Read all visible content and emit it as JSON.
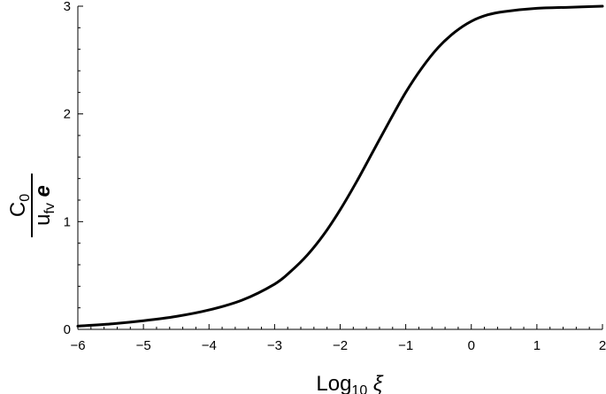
{
  "chart_data": {
    "type": "line",
    "title": "",
    "x_axis": {
      "label_main": "Log",
      "label_sub": "10",
      "label_symbol": "ξ",
      "ticks": [
        -6,
        -5,
        -4,
        -3,
        -2,
        -1,
        0,
        1,
        2
      ],
      "tick_labels": [
        "−6",
        "−5",
        "−4",
        "−3",
        "−2",
        "−1",
        "0",
        "1",
        "2"
      ],
      "range": [
        -6,
        2
      ]
    },
    "y_axis": {
      "numerator_main": "C",
      "numerator_sub": "0",
      "denominator_main": "u",
      "denominator_sub": "fv",
      "denominator_symbol": "e",
      "ticks": [
        0,
        1,
        2,
        3
      ],
      "tick_labels": [
        "0",
        "1",
        "2",
        "3"
      ],
      "range": [
        0,
        3
      ]
    },
    "grid": false,
    "legend": "none",
    "series": [
      {
        "color": "#000000",
        "x": [
          -6,
          -5.5,
          -5,
          -4.5,
          -4,
          -3.5,
          -3,
          -2.75,
          -2.5,
          -2.25,
          -2,
          -1.75,
          -1.5,
          -1.25,
          -1,
          -0.75,
          -0.5,
          -0.25,
          0,
          0.25,
          0.5,
          1,
          1.5,
          2
        ],
        "y": [
          0.03,
          0.05,
          0.08,
          0.12,
          0.18,
          0.27,
          0.42,
          0.54,
          0.69,
          0.88,
          1.11,
          1.37,
          1.65,
          1.93,
          2.2,
          2.43,
          2.62,
          2.76,
          2.86,
          2.92,
          2.95,
          2.98,
          2.99,
          3.0
        ]
      }
    ]
  }
}
